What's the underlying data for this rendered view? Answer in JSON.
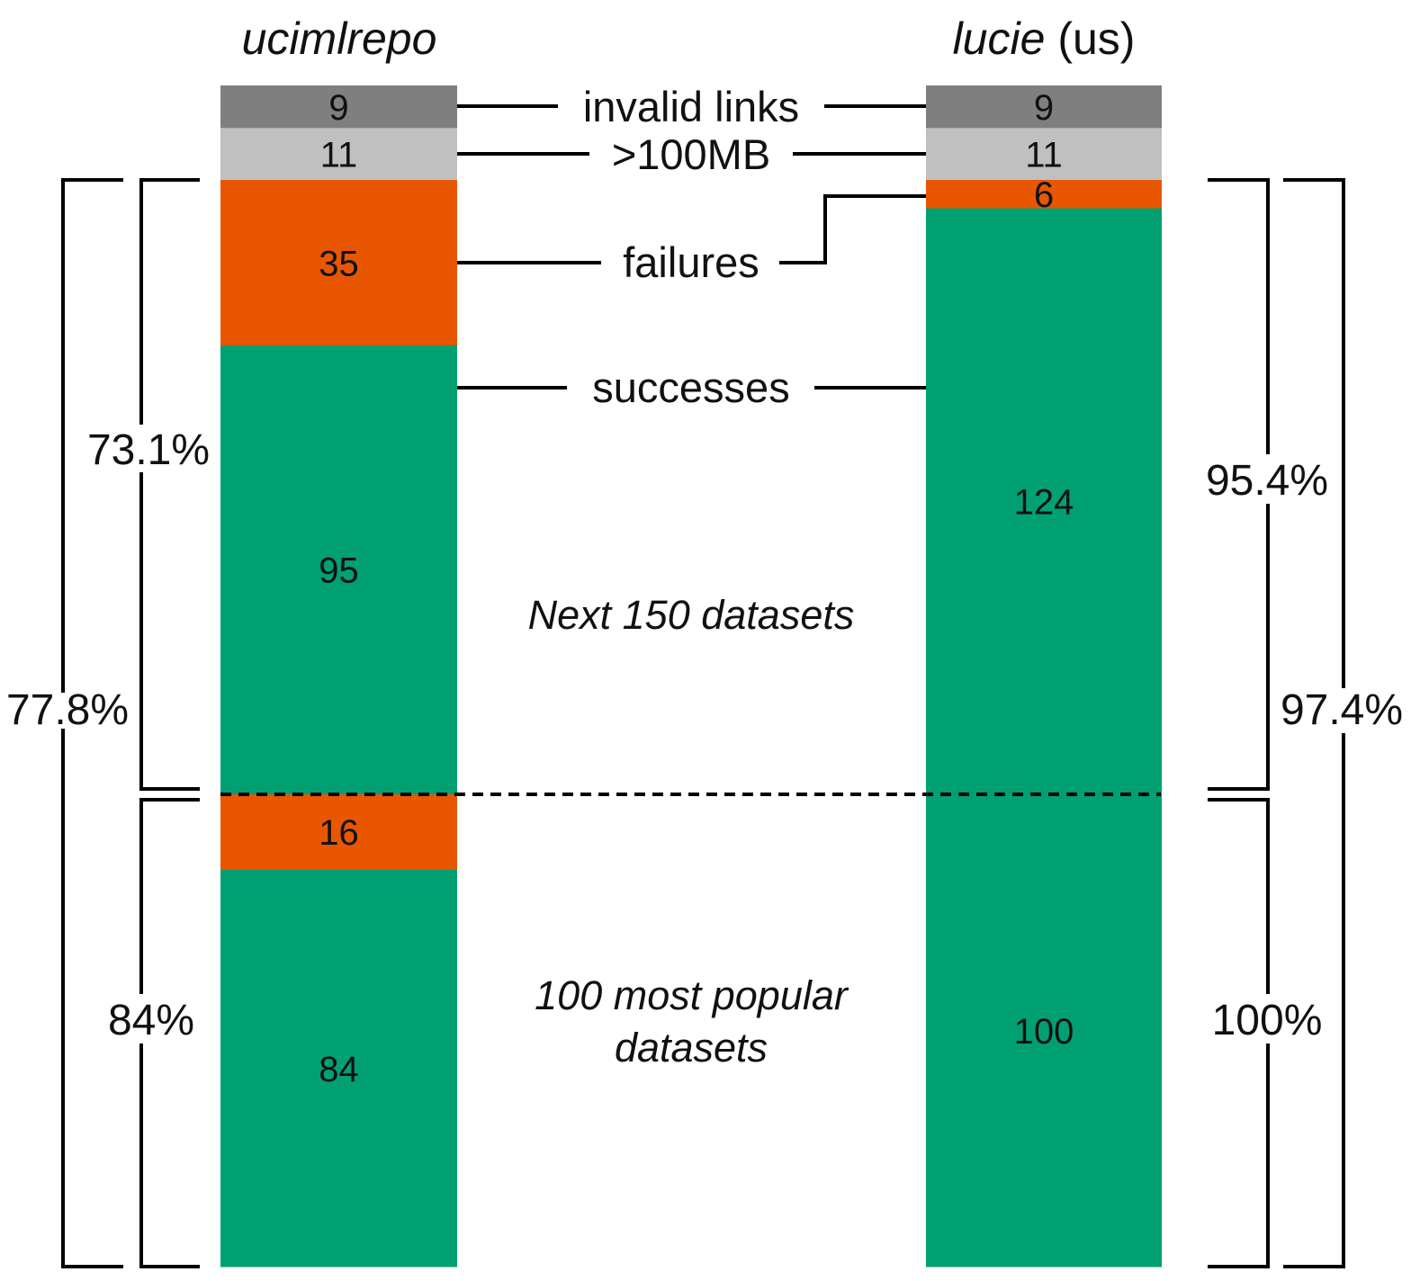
{
  "colors": {
    "invalid": "#7f7f7f",
    "large": "#c0c0c0",
    "failure": "#e85600",
    "success": "#00a072",
    "line": "#000000"
  },
  "chart_data": {
    "type": "bar",
    "stacked": true,
    "columns": [
      {
        "title_italic": "ucimlrepo",
        "title_rest": "",
        "segments": [
          {
            "name": "invalid links",
            "value": 9,
            "color_key": "invalid"
          },
          {
            "name": ">100MB",
            "value": 11,
            "color_key": "large"
          },
          {
            "name": "failures",
            "group": "Next 150 datasets",
            "value": 35,
            "color_key": "failure"
          },
          {
            "name": "successes",
            "group": "Next 150 datasets",
            "value": 95,
            "color_key": "success"
          },
          {
            "name": "failures",
            "group": "100 most popular datasets",
            "value": 16,
            "color_key": "failure"
          },
          {
            "name": "successes",
            "group": "100 most popular datasets",
            "value": 84,
            "color_key": "success"
          }
        ],
        "pct_next_150": "73.1%",
        "pct_overall": "77.8%",
        "pct_top_100": "84%"
      },
      {
        "title_italic": "lucie",
        "title_rest": " (us)",
        "segments": [
          {
            "name": "invalid links",
            "value": 9,
            "color_key": "invalid"
          },
          {
            "name": ">100MB",
            "value": 11,
            "color_key": "large"
          },
          {
            "name": "failures",
            "group": "Next 150 datasets",
            "value": 6,
            "color_key": "failure"
          },
          {
            "name": "successes",
            "group": "Next 150 datasets",
            "value": 124,
            "color_key": "success"
          },
          {
            "name": "failures",
            "group": "100 most popular datasets",
            "value": 0,
            "color_key": "failure"
          },
          {
            "name": "successes",
            "group": "100 most popular datasets",
            "value": 100,
            "color_key": "success"
          }
        ],
        "pct_next_150": "95.4%",
        "pct_overall": "97.4%",
        "pct_top_100": "100%"
      }
    ],
    "legend": {
      "invalid_links": "invalid links",
      "large": ">100MB",
      "failures": "failures",
      "successes": "successes"
    },
    "groups": {
      "next_150": "Next 150 datasets",
      "top_100_line1": "100 most popular",
      "top_100_line2": "datasets"
    }
  }
}
